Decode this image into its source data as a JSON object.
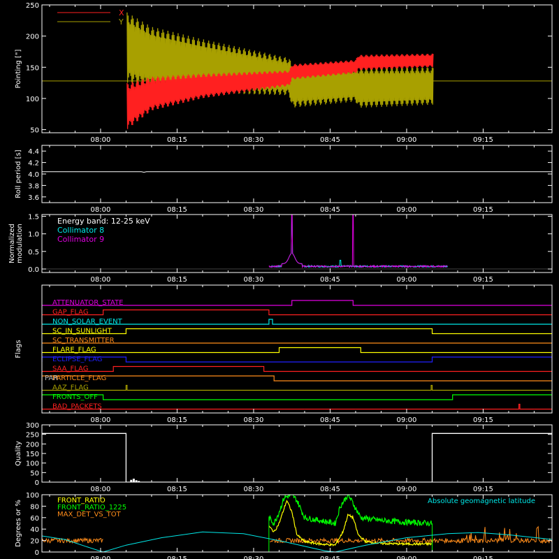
{
  "colors": {
    "bg": "#000000",
    "fg": "#ffffff",
    "red": "#ff2020",
    "olive": "#a8a000",
    "cyan": "#00e8e8",
    "magenta": "#e000e0",
    "green": "#00ff00",
    "yellow": "#ffff00",
    "orange": "#ff8c1a",
    "blue": "#2020ff",
    "gray": "#bbbbbb",
    "orange_red": "#ff5a1a"
  },
  "chart_data": [
    {
      "type": "line",
      "id": "pointing",
      "ylabel": "Pointing [\"]",
      "ylim": [
        45,
        250
      ],
      "yticks": [
        50,
        100,
        150,
        200,
        250
      ],
      "time_ticks": [
        "08:00",
        "08:15",
        "08:30",
        "08:45",
        "09:00",
        "09:15"
      ],
      "tick_minutes": [
        0,
        15,
        30,
        45,
        60,
        75
      ],
      "xlim_minutes": [
        -11.5,
        88.5
      ],
      "legend": [
        "X",
        "Y"
      ],
      "series": [
        {
          "name": "X",
          "color_key": "red",
          "envelope": [
            {
              "t": 5.2,
              "lo": 50,
              "hi": 125
            },
            {
              "t": 10,
              "lo": 80,
              "hi": 135
            },
            {
              "t": 20,
              "lo": 100,
              "hi": 140
            },
            {
              "t": 37,
              "lo": 120,
              "hi": 145
            },
            {
              "t": 37.5,
              "lo": 130,
              "hi": 155
            },
            {
              "t": 50,
              "lo": 140,
              "hi": 162
            },
            {
              "t": 50.5,
              "lo": 145,
              "hi": 170
            },
            {
              "t": 65.2,
              "lo": 150,
              "hi": 172
            }
          ]
        },
        {
          "name": "Y",
          "color_key": "olive",
          "envelope": [
            {
              "t": 5.2,
              "lo": 125,
              "hi": 238
            },
            {
              "t": 10,
              "lo": 115,
              "hi": 215
            },
            {
              "t": 20,
              "lo": 108,
              "hi": 195
            },
            {
              "t": 37,
              "lo": 105,
              "hi": 165
            },
            {
              "t": 37.5,
              "lo": 85,
              "hi": 155
            },
            {
              "t": 50,
              "lo": 95,
              "hi": 150
            },
            {
              "t": 50.5,
              "lo": 85,
              "hi": 150
            },
            {
              "t": 65.2,
              "lo": 90,
              "hi": 150
            }
          ]
        }
      ],
      "baseline": 128
    },
    {
      "type": "line",
      "id": "roll",
      "ylabel": "Roll period [s]",
      "ylim": [
        3.5,
        4.5
      ],
      "yticks": [
        3.6,
        3.8,
        4.0,
        4.2,
        4.4
      ],
      "time_ticks": [
        "08:00",
        "08:15",
        "08:30",
        "08:45",
        "09:00",
        "09:15"
      ],
      "tick_minutes": [
        0,
        15,
        30,
        45,
        60,
        75
      ],
      "xlim_minutes": [
        -11.5,
        88.5
      ],
      "series": [
        {
          "name": "",
          "color_key": "fg",
          "value": 4.04,
          "span": [
            -11.5,
            88.5
          ]
        }
      ]
    },
    {
      "type": "line",
      "id": "modulation",
      "ylabel": "Normalized modulation",
      "ylim": [
        -0.1,
        1.55
      ],
      "yticks": [
        0.0,
        0.5,
        1.0,
        1.5
      ],
      "time_ticks": [
        "08:00",
        "08:15",
        "08:30",
        "08:45",
        "09:00",
        "09:15"
      ],
      "tick_minutes": [
        0,
        15,
        30,
        45,
        60,
        75
      ],
      "xlim_minutes": [
        -11.5,
        88.5
      ],
      "annotation": "Energy band: 12-25 keV",
      "legend": [
        "Collimator 8",
        "Collimator 9"
      ],
      "series": [
        {
          "name": "Collimator 8",
          "color_key": "cyan",
          "span": [
            33,
            68
          ],
          "spikes": [
            [
              37.5,
              1.5
            ],
            [
              47,
              0.25
            ]
          ]
        },
        {
          "name": "Collimator 9",
          "color_key": "magenta",
          "span": [
            33,
            68
          ],
          "spikes": [
            [
              37.5,
              1.55
            ],
            [
              49.5,
              1.55
            ]
          ]
        }
      ]
    },
    {
      "type": "line",
      "id": "flags",
      "ylabel": "Flags",
      "time_ticks": [
        "08:00",
        "08:15",
        "08:30",
        "08:45",
        "09:00",
        "09:15"
      ],
      "tick_minutes": [
        0,
        15,
        30,
        45,
        60,
        75
      ],
      "xlim_minutes": [
        -11.5,
        88.5
      ],
      "flags": [
        {
          "label": "ATTENUATOR_STATE",
          "color_key": "magenta",
          "high": [
            [
              37.5,
              49.5
            ]
          ]
        },
        {
          "label": "GAP_FLAG",
          "color_key": "red",
          "high": [
            [
              0.5,
              33
            ]
          ]
        },
        {
          "label": "NON_SOLAR_EVENT",
          "color_key": "cyan",
          "high": [
            [
              33,
              33.7
            ]
          ]
        },
        {
          "label": "SC_IN_SUNLIGHT",
          "color_key": "yellow",
          "high": [
            [
              5,
              65
            ]
          ]
        },
        {
          "label": "SC_TRANSMITTER",
          "color_key": "orange",
          "high": []
        },
        {
          "label": "FLARE_FLAG",
          "color_key": "yellow",
          "high": [
            [
              35,
              51
            ]
          ]
        },
        {
          "label": "ECLIPSE_FLAG",
          "color_key": "blue",
          "high": [
            [
              -11.5,
              5
            ],
            [
              65,
              88.5
            ]
          ]
        },
        {
          "label": "SAA_FLAG",
          "color_key": "red",
          "high": [
            [
              2.5,
              32
            ]
          ]
        },
        {
          "label": "PARTICLE_FLAG",
          "color_key": "orange",
          "high": [
            [
              -11.5,
              34
            ]
          ]
        },
        {
          "label": "AAZ_FLAG",
          "color_key": "olive",
          "high": [
            [
              5,
              5.2
            ],
            [
              64.8,
              65
            ]
          ]
        },
        {
          "label": "FRONTS_OFF",
          "color_key": "green",
          "high": [
            [
              -11.5,
              0.5
            ],
            [
              69,
              88.5
            ]
          ]
        },
        {
          "label": "BAD_PACKETS",
          "color_key": "red",
          "high": [
            [
              82,
              82.2
            ]
          ]
        }
      ],
      "overlap_label": "PAR",
      "overlap_color_key": "gray"
    },
    {
      "type": "line",
      "id": "quality",
      "ylabel": "Quality",
      "ylim": [
        0,
        300
      ],
      "yticks": [
        0,
        50,
        100,
        150,
        200,
        250,
        300
      ],
      "time_ticks": [
        "08:00",
        "08:15",
        "08:30",
        "08:45",
        "09:00",
        "09:15"
      ],
      "tick_minutes": [
        0,
        15,
        30,
        45,
        60,
        75
      ],
      "xlim_minutes": [
        -11.5,
        88.5
      ],
      "series": [
        {
          "name": "",
          "color_key": "fg",
          "steps": [
            [
              -11.5,
              255
            ],
            [
              5,
              255
            ],
            [
              5,
              0
            ],
            [
              65,
              0
            ],
            [
              65,
              255
            ],
            [
              88.5,
              255
            ]
          ],
          "blips": [
            [
              6,
              12
            ],
            [
              6.5,
              18
            ],
            [
              7,
              10
            ],
            [
              7.5,
              6
            ]
          ]
        }
      ]
    },
    {
      "type": "line",
      "id": "ratios",
      "ylabel": "Degrees or %",
      "ylim": [
        0,
        100
      ],
      "yticks": [
        0,
        20,
        40,
        60,
        80,
        100
      ],
      "time_ticks": [
        "08:00",
        "08:15",
        "08:30",
        "08:45",
        "09:00",
        "09:15"
      ],
      "tick_minutes": [
        0,
        15,
        30,
        45,
        60,
        75
      ],
      "xlim_minutes": [
        -11.5,
        88.5
      ],
      "legend": [
        "FRONT_RATIO",
        "FRONT_RATIO_1225",
        "MAX_DET_VS_TOT"
      ],
      "right_label": "Absolute geomagnetic latitude",
      "series": [
        {
          "name": "FRONT_RATIO",
          "color_key": "yellow",
          "points": [
            [
              33,
              45
            ],
            [
              34,
              35
            ],
            [
              35,
              50
            ],
            [
              36.5,
              90
            ],
            [
              37.5,
              70
            ],
            [
              38.5,
              30
            ],
            [
              40,
              18
            ],
            [
              43,
              14
            ],
            [
              46,
              12
            ],
            [
              47.5,
              35
            ],
            [
              48.5,
              65
            ],
            [
              49.5,
              60
            ],
            [
              50.5,
              30
            ],
            [
              52,
              18
            ],
            [
              55,
              15
            ],
            [
              60,
              14
            ],
            [
              65,
              14
            ]
          ]
        },
        {
          "name": "FRONT_RATIO_1225",
          "color_key": "green",
          "points": [
            [
              33,
              60
            ],
            [
              34,
              50
            ],
            [
              35,
              70
            ],
            [
              36,
              95
            ],
            [
              37.5,
              100
            ],
            [
              38.5,
              90
            ],
            [
              40,
              60
            ],
            [
              43,
              55
            ],
            [
              46,
              50
            ],
            [
              47,
              80
            ],
            [
              48.5,
              100
            ],
            [
              49.5,
              85
            ],
            [
              51,
              60
            ],
            [
              55,
              55
            ],
            [
              60,
              52
            ],
            [
              65,
              50
            ]
          ]
        },
        {
          "name": "MAX_DET_VS_TOT",
          "color_key": "orange",
          "level": 20
        },
        {
          "name": "Absolute geomagnetic latitude",
          "color_key": "cyan",
          "points": [
            [
              -11.5,
              28
            ],
            [
              -7,
              22
            ],
            [
              -3,
              10
            ],
            [
              0.5,
              0
            ],
            [
              5,
              12
            ],
            [
              12,
              25
            ],
            [
              20,
              35
            ],
            [
              28,
              32
            ],
            [
              36,
              18
            ],
            [
              44,
              2
            ],
            [
              46,
              0
            ],
            [
              52,
              12
            ],
            [
              60,
              25
            ],
            [
              68,
              32
            ],
            [
              74,
              34
            ],
            [
              80,
              30
            ],
            [
              88.5,
              22
            ]
          ]
        }
      ]
    }
  ]
}
